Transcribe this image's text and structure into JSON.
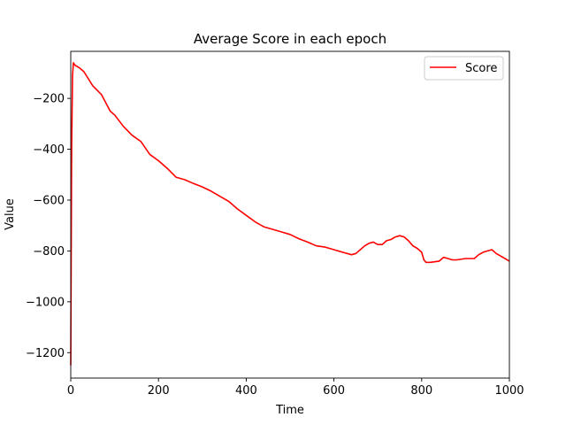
{
  "chart_data": {
    "type": "line",
    "title": "Average Score in each epoch",
    "xlabel": "Time",
    "ylabel": "Value",
    "xlim": [
      0,
      1000
    ],
    "ylim": [
      -1300,
      -15
    ],
    "x_ticks": [
      0,
      200,
      400,
      600,
      800,
      1000
    ],
    "y_ticks": [
      -1200,
      -1000,
      -800,
      -600,
      -400,
      -200
    ],
    "x_tick_labels": [
      "0",
      "200",
      "400",
      "600",
      "800",
      "1000"
    ],
    "y_tick_labels": [
      "−1200",
      "−1000",
      "−800",
      "−600",
      "−400",
      "−200"
    ],
    "grid": false,
    "legend_position": "top-right",
    "series": [
      {
        "name": "Score",
        "color": "#ff0000",
        "x": [
          0,
          2,
          4,
          6,
          10,
          20,
          30,
          50,
          70,
          90,
          100,
          120,
          140,
          160,
          180,
          200,
          220,
          240,
          260,
          280,
          300,
          320,
          340,
          360,
          380,
          400,
          420,
          440,
          460,
          480,
          500,
          520,
          540,
          560,
          580,
          600,
          620,
          640,
          650,
          660,
          670,
          680,
          690,
          700,
          710,
          720,
          730,
          740,
          750,
          760,
          770,
          780,
          790,
          800,
          805,
          810,
          820,
          840,
          850,
          860,
          870,
          880,
          900,
          920,
          930,
          940,
          950,
          960,
          970,
          980,
          990,
          1000
        ],
        "y": [
          -1250,
          -400,
          -110,
          -60,
          -70,
          -80,
          -95,
          -150,
          -185,
          -250,
          -265,
          -310,
          -345,
          -370,
          -420,
          -445,
          -475,
          -510,
          -520,
          -535,
          -548,
          -565,
          -585,
          -605,
          -635,
          -660,
          -685,
          -705,
          -715,
          -725,
          -735,
          -752,
          -765,
          -780,
          -785,
          -795,
          -805,
          -815,
          -810,
          -795,
          -780,
          -770,
          -765,
          -775,
          -775,
          -760,
          -755,
          -745,
          -740,
          -745,
          -760,
          -780,
          -790,
          -805,
          -835,
          -845,
          -845,
          -840,
          -825,
          -830,
          -835,
          -835,
          -830,
          -830,
          -815,
          -805,
          -800,
          -795,
          -810,
          -820,
          -830,
          -840
        ]
      }
    ]
  }
}
